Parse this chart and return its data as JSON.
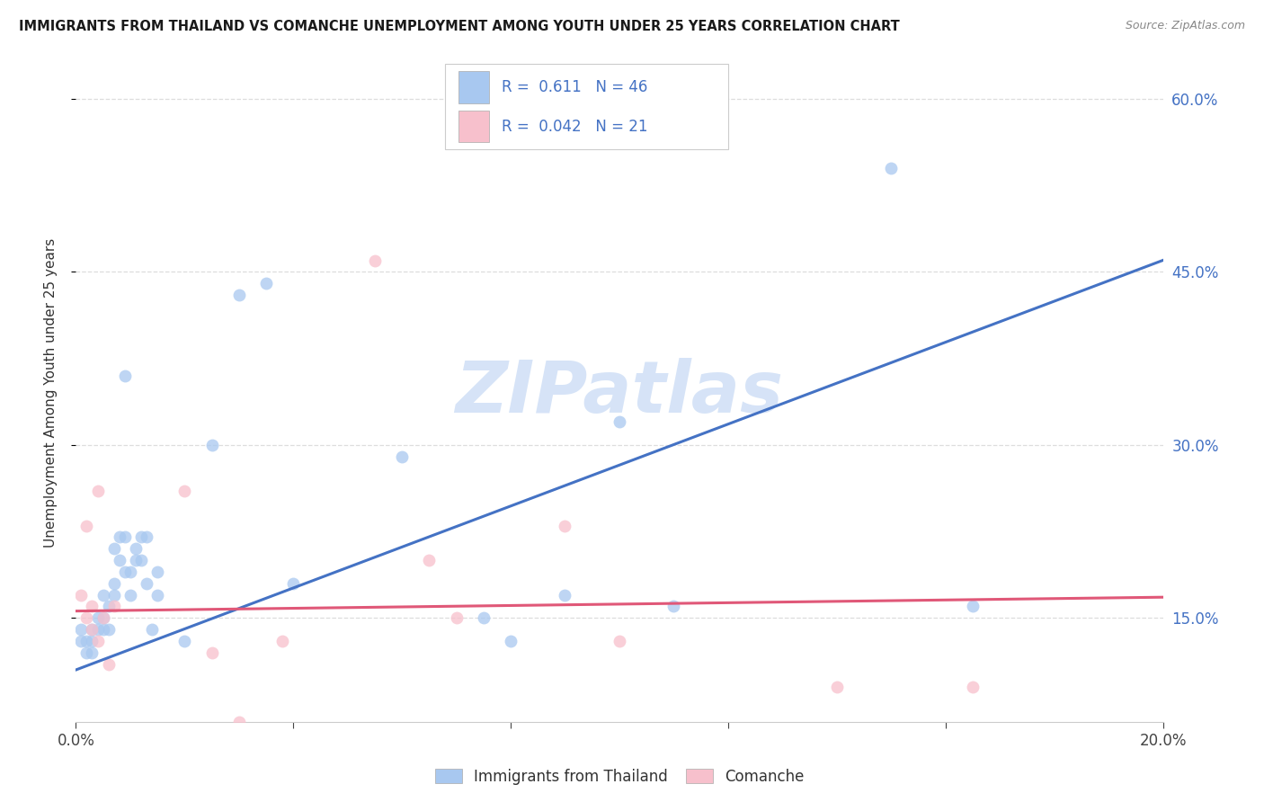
{
  "title": "IMMIGRANTS FROM THAILAND VS COMANCHE UNEMPLOYMENT AMONG YOUTH UNDER 25 YEARS CORRELATION CHART",
  "source": "Source: ZipAtlas.com",
  "ylabel": "Unemployment Among Youth under 25 years",
  "xlim": [
    0,
    0.2
  ],
  "ylim": [
    0.06,
    0.63
  ],
  "yticks": [
    0.15,
    0.3,
    0.45,
    0.6
  ],
  "xticks_major": [
    0.0,
    0.04,
    0.08,
    0.12,
    0.16,
    0.2
  ],
  "blue_R": "0.611",
  "blue_N": "46",
  "pink_R": "0.042",
  "pink_N": "21",
  "blue_fill_color": "#a8c8f0",
  "pink_fill_color": "#f7c0cc",
  "blue_line_color": "#4472c4",
  "pink_line_color": "#e05878",
  "blue_scatter_x": [
    0.001,
    0.001,
    0.002,
    0.002,
    0.003,
    0.003,
    0.003,
    0.004,
    0.004,
    0.005,
    0.005,
    0.005,
    0.006,
    0.006,
    0.007,
    0.007,
    0.007,
    0.008,
    0.008,
    0.009,
    0.009,
    0.009,
    0.01,
    0.01,
    0.011,
    0.011,
    0.012,
    0.012,
    0.013,
    0.013,
    0.014,
    0.015,
    0.015,
    0.02,
    0.025,
    0.03,
    0.035,
    0.04,
    0.06,
    0.075,
    0.08,
    0.09,
    0.1,
    0.11,
    0.15,
    0.165
  ],
  "blue_scatter_y": [
    0.14,
    0.13,
    0.13,
    0.12,
    0.14,
    0.13,
    0.12,
    0.15,
    0.14,
    0.15,
    0.14,
    0.17,
    0.16,
    0.14,
    0.18,
    0.21,
    0.17,
    0.2,
    0.22,
    0.19,
    0.22,
    0.36,
    0.19,
    0.17,
    0.21,
    0.2,
    0.22,
    0.2,
    0.22,
    0.18,
    0.14,
    0.19,
    0.17,
    0.13,
    0.3,
    0.43,
    0.44,
    0.18,
    0.29,
    0.15,
    0.13,
    0.17,
    0.32,
    0.16,
    0.54,
    0.16
  ],
  "pink_scatter_x": [
    0.001,
    0.002,
    0.002,
    0.003,
    0.003,
    0.004,
    0.004,
    0.005,
    0.006,
    0.007,
    0.02,
    0.025,
    0.03,
    0.038,
    0.055,
    0.065,
    0.07,
    0.09,
    0.1,
    0.14,
    0.165
  ],
  "pink_scatter_y": [
    0.17,
    0.23,
    0.15,
    0.14,
    0.16,
    0.26,
    0.13,
    0.15,
    0.11,
    0.16,
    0.26,
    0.12,
    0.06,
    0.13,
    0.46,
    0.2,
    0.15,
    0.23,
    0.13,
    0.09,
    0.09
  ],
  "blue_line_x": [
    0.0,
    0.2
  ],
  "blue_line_y": [
    0.105,
    0.46
  ],
  "pink_line_x": [
    0.0,
    0.2
  ],
  "pink_line_y": [
    0.156,
    0.168
  ],
  "watermark": "ZIPatlas",
  "watermark_color": "#ccddf5",
  "background_color": "#ffffff",
  "grid_color": "#dddddd",
  "legend_label_blue": "Immigrants from Thailand",
  "legend_label_pink": "Comanche",
  "legend_text_color": "#4472c4",
  "scatter_size": 100,
  "scatter_alpha": 0.75
}
